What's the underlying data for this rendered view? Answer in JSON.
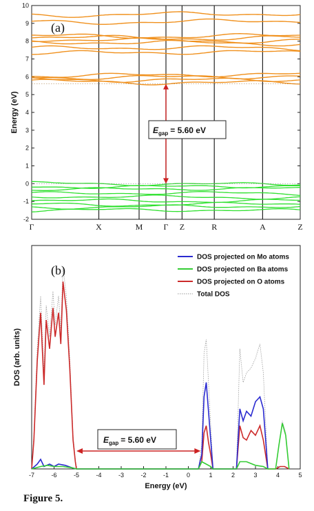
{
  "caption": "Figure 5.",
  "chart_data": [
    {
      "type": "line",
      "panel_label": "(a)",
      "ylabel": "Energy (eV)",
      "ylim": [
        -2,
        10
      ],
      "yticks": [
        "-2",
        "-1",
        "0",
        "1",
        "2",
        "3",
        "4",
        "5",
        "6",
        "7",
        "8",
        "9",
        "10"
      ],
      "kpoints": [
        "Γ",
        "X",
        "M",
        "Γ",
        "Z",
        "R",
        "A",
        "Z"
      ],
      "kpoint_positions": [
        0,
        0.25,
        0.4,
        0.5,
        0.56,
        0.68,
        0.86,
        1.0
      ],
      "series": [
        {
          "band": "conduction",
          "color": "#f0901c"
        },
        {
          "band": "valence",
          "color": "#2ee02e"
        }
      ],
      "conduction_levels": [
        5.7,
        5.85,
        6.0,
        6.1,
        7.35,
        7.6,
        7.9,
        8.05,
        8.2,
        8.3,
        9.1,
        9.5
      ],
      "valence_levels": [
        0.0,
        -0.15,
        -0.3,
        -0.55,
        -0.75,
        -0.95,
        -1.15,
        -1.3,
        -1.5
      ],
      "gap_label": "= 5.60 eV",
      "gap_symbol": "E",
      "gap_subscript": "gap",
      "gap_value": 5.6
    },
    {
      "type": "line",
      "panel_label": "(b)",
      "xlabel": "Energy (eV)",
      "ylabel": "DOS (arb. units)",
      "xlim": [
        -7,
        5
      ],
      "xticks": [
        "-7",
        "-6",
        "-5",
        "-4",
        "-3",
        "-2",
        "-1",
        "0",
        "1",
        "2",
        "3",
        "4",
        "5"
      ],
      "legend_position": "top-right",
      "legend": [
        {
          "label": "DOS projected on Mo atoms",
          "color": "#2a2ad0"
        },
        {
          "label": "DOS projected on Ba atoms",
          "color": "#33cc33"
        },
        {
          "label": "DOS projected on O atoms",
          "color": "#cc2a2a"
        },
        {
          "label": "Total DOS",
          "color": "#999999"
        }
      ],
      "series": [
        {
          "name": "DOS projected on O atoms",
          "x": [
            -7,
            -6.9,
            -6.75,
            -6.6,
            -6.45,
            -6.35,
            -6.2,
            -6.05,
            -5.95,
            -5.8,
            -5.7,
            -5.6,
            -5.45,
            -5.3,
            -5.15,
            -5.05,
            -5.0,
            0.45,
            0.6,
            0.7,
            0.8,
            0.9,
            1.0,
            1.1,
            2.15,
            2.3,
            2.45,
            2.6,
            2.8,
            3.0,
            3.2,
            3.35,
            3.55,
            3.9,
            4.1,
            4.3,
            4.5
          ],
          "y": [
            0,
            1.2,
            4.5,
            6.5,
            3.5,
            6.2,
            5.0,
            6.7,
            5.5,
            6.5,
            5.2,
            7.8,
            6.6,
            4.2,
            1.2,
            0.3,
            0,
            0,
            0.3,
            1.5,
            1.8,
            1.1,
            0.6,
            0,
            0,
            1.8,
            1.3,
            1.2,
            1.6,
            1.4,
            1.8,
            1.2,
            0,
            0,
            0.1,
            0.1,
            0
          ]
        },
        {
          "name": "DOS projected on Mo atoms",
          "x": [
            -7,
            -6.75,
            -6.6,
            -6.45,
            -6.2,
            -6.0,
            -5.8,
            -5.5,
            -5.2,
            -5.0,
            0.45,
            0.6,
            0.7,
            0.8,
            0.9,
            1.0,
            1.1,
            2.15,
            2.3,
            2.45,
            2.6,
            2.8,
            3.0,
            3.2,
            3.35,
            3.55
          ],
          "y": [
            0,
            0.2,
            0.4,
            0.1,
            0.2,
            0.1,
            0.2,
            0.15,
            0.05,
            0,
            0,
            0.6,
            3.0,
            3.6,
            2.4,
            1.2,
            0,
            0,
            2.5,
            2.0,
            2.4,
            2.2,
            2.8,
            3.0,
            2.5,
            0
          ]
        },
        {
          "name": "DOS projected on Ba atoms",
          "x": [
            -7,
            -6.6,
            -6.3,
            -6.0,
            -5.6,
            -5.2,
            -5.0,
            0.45,
            0.6,
            0.8,
            1.0,
            1.1,
            2.15,
            2.3,
            2.6,
            3.0,
            3.35,
            3.55,
            3.9,
            4.05,
            4.2,
            4.35,
            4.5
          ],
          "y": [
            0,
            0.1,
            0.15,
            0.1,
            0.1,
            0.05,
            0,
            0,
            0.3,
            0.2,
            0.1,
            0,
            0,
            0.3,
            0.3,
            0.15,
            0.1,
            0,
            0,
            1.0,
            1.9,
            1.4,
            0
          ]
        },
        {
          "name": "Total DOS",
          "x": [
            -7,
            -6.9,
            -6.75,
            -6.6,
            -6.45,
            -6.35,
            -6.2,
            -6.05,
            -5.95,
            -5.8,
            -5.7,
            -5.6,
            -5.45,
            -5.3,
            -5.15,
            -5.05,
            -5.0,
            0.45,
            0.6,
            0.7,
            0.8,
            0.9,
            1.0,
            1.1,
            2.15,
            2.3,
            2.45,
            2.6,
            2.8,
            3.0,
            3.2,
            3.35,
            3.55,
            3.9,
            4.05,
            4.2,
            4.35,
            4.5
          ],
          "y": [
            0,
            1.4,
            5.0,
            7.2,
            4.0,
            6.8,
            5.5,
            7.4,
            6.0,
            7.2,
            5.8,
            8.4,
            7.2,
            4.6,
            1.4,
            0.4,
            0,
            0,
            1.0,
            4.8,
            5.4,
            3.6,
            1.8,
            0,
            0,
            5.0,
            3.6,
            4.0,
            4.2,
            4.6,
            5.2,
            4.0,
            0,
            0,
            1.0,
            2.0,
            1.5,
            0
          ]
        }
      ],
      "gap_label": "= 5.60 eV",
      "gap_symbol": "E",
      "gap_subscript": "gap",
      "gap_value": 5.6
    }
  ]
}
